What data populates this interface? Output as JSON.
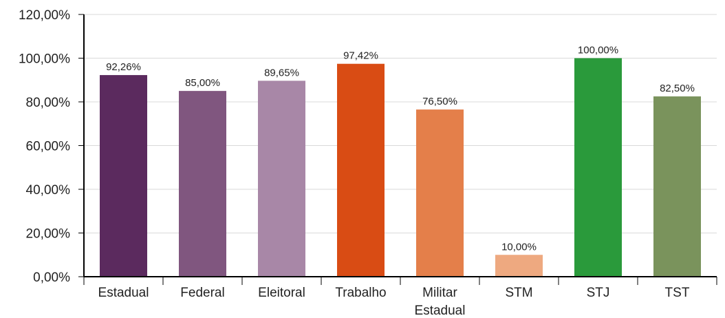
{
  "chart_data": {
    "type": "bar",
    "categories": [
      "Estadual",
      "Federal",
      "Eleitoral",
      "Trabalho",
      "Militar Estadual",
      "STM",
      "STJ",
      "TST"
    ],
    "category_lines": [
      [
        "Estadual"
      ],
      [
        "Federal"
      ],
      [
        "Eleitoral"
      ],
      [
        "Trabalho"
      ],
      [
        "Militar",
        "Estadual"
      ],
      [
        "STM"
      ],
      [
        "STJ"
      ],
      [
        "TST"
      ]
    ],
    "values": [
      92.26,
      85.0,
      89.65,
      97.42,
      76.5,
      10.0,
      100.0,
      82.5
    ],
    "data_labels": [
      "92,26%",
      "85,00%",
      "89,65%",
      "97,42%",
      "76,50%",
      "10,00%",
      "100,00%",
      "82,50%"
    ],
    "colors": [
      "#5b2a5e",
      "#80567f",
      "#a887a7",
      "#d94c14",
      "#e47f4a",
      "#eea980",
      "#2a9a3b",
      "#7a935c"
    ],
    "title": "",
    "xlabel": "",
    "ylabel": "",
    "ylim": [
      0,
      120
    ],
    "y_ticks": [
      0,
      20,
      40,
      60,
      80,
      100,
      120
    ],
    "y_tick_labels": [
      "0,00%",
      "20,00%",
      "40,00%",
      "60,00%",
      "80,00%",
      "100,00%",
      "120,00%"
    ],
    "grid": true,
    "legend": "none"
  }
}
